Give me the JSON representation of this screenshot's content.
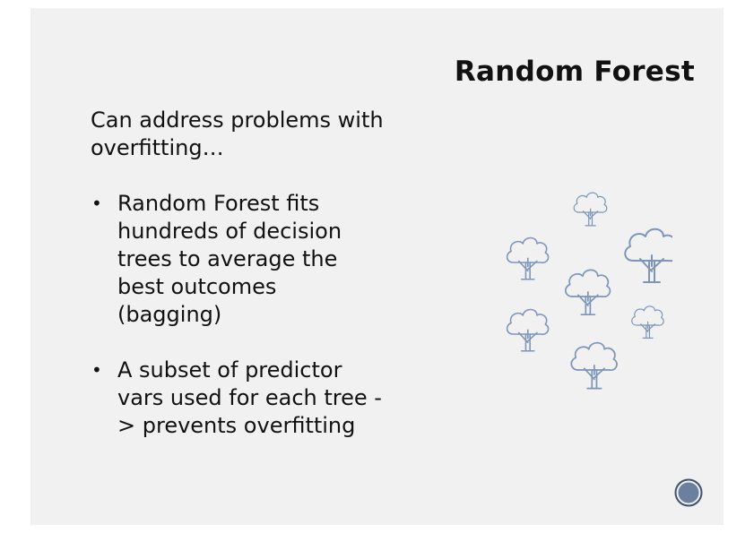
{
  "slide": {
    "title": "Random Forest",
    "intro": "Can address problems with overfitting…",
    "bullets": [
      {
        "marker": "•",
        "text": "Random Forest fits hundreds of decision trees to average the best outcomes (bagging)"
      },
      {
        "marker": "•",
        "text": "A subset of predictor vars used for each tree -> prevents overfitting"
      }
    ]
  },
  "illustration": {
    "icon": "tree-icon",
    "tree_count": 7,
    "stroke_color": "#7d95b8"
  },
  "nav_button": {
    "icon": "circle-button-icon",
    "fill_color": "#6b7f9e",
    "ring_color": "#3f526e"
  }
}
